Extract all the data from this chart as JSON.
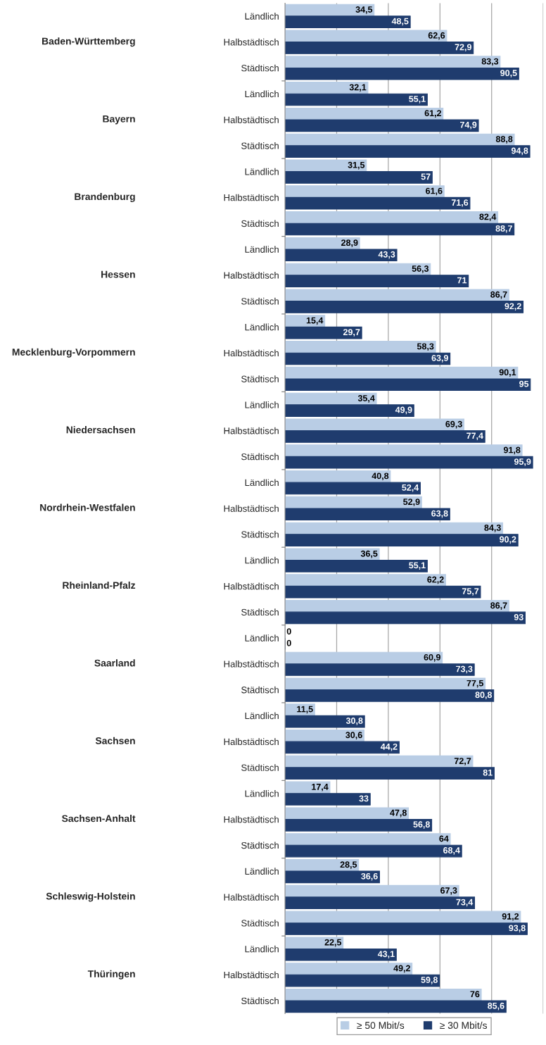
{
  "chart_data": {
    "type": "bar",
    "orientation": "horizontal",
    "categories": [
      "Ländlich",
      "Halbstädtisch",
      "Städtisch",
      "Ländlich",
      "Halbstädtisch",
      "Städtisch",
      "Ländlich",
      "Halbstädtisch",
      "Städtisch",
      "Ländlich",
      "Halbstädtisch",
      "Städtisch",
      "Ländlich",
      "Halbstädtisch",
      "Städtisch",
      "Ländlich",
      "Halbstädtisch",
      "Städtisch",
      "Ländlich",
      "Halbstädtisch",
      "Städtisch",
      "Ländlich",
      "Halbstädtisch",
      "Städtisch",
      "Ländlich",
      "Halbstädtisch",
      "Städtisch",
      "Ländlich",
      "Halbstädtisch",
      "Städtisch",
      "Ländlich",
      "Halbstädtisch",
      "Städtisch",
      "Ländlich",
      "Halbstädtisch",
      "Städtisch",
      "Ländlich",
      "Halbstädtisch",
      "Städtisch"
    ],
    "annotations": [
      "Baden-Württemberg",
      "Bayern",
      "Brandenburg",
      "Hessen",
      "Mecklenburg-Vorpommern",
      "Niedersachsen",
      "Nordrhein-Westfalen",
      "Rheinland-Pfalz",
      "Saarland",
      "Sachsen",
      "Sachsen-Anhalt",
      "Schleswig-Holstein",
      "Thüringen"
    ],
    "series": [
      {
        "name": "≥ 50 Mbit/s",
        "color": "#b9cde5",
        "values": [
          34.5,
          62.6,
          83.3,
          32.1,
          61.2,
          88.8,
          31.5,
          61.6,
          82.4,
          28.9,
          56.3,
          86.7,
          15.4,
          58.3,
          90.1,
          35.4,
          69.3,
          91.8,
          40.8,
          52.9,
          84.3,
          36.5,
          62.2,
          86.7,
          0,
          60.9,
          77.5,
          11.5,
          30.6,
          72.7,
          17.4,
          47.8,
          64,
          28.5,
          67.3,
          91.2,
          22.5,
          49.2,
          76
        ],
        "value_labels": [
          "34,5",
          "62,6",
          "83,3",
          "32,1",
          "61,2",
          "88,8",
          "31,5",
          "61,6",
          "82,4",
          "28,9",
          "56,3",
          "86,7",
          "15,4",
          "58,3",
          "90,1",
          "35,4",
          "69,3",
          "91,8",
          "40,8",
          "52,9",
          "84,3",
          "36,5",
          "62,2",
          "86,7",
          "0",
          "60,9",
          "77,5",
          "11,5",
          "30,6",
          "72,7",
          "17,4",
          "47,8",
          "64",
          "28,5",
          "67,3",
          "91,2",
          "22,5",
          "49,2",
          "76"
        ]
      },
      {
        "name": "≥ 30 Mbit/s",
        "color": "#1f3c6e",
        "values": [
          48.5,
          72.9,
          90.5,
          55.1,
          74.9,
          94.8,
          57,
          71.6,
          88.7,
          43.3,
          71,
          92.2,
          29.7,
          63.9,
          95,
          49.9,
          77.4,
          95.9,
          52.4,
          63.8,
          90.2,
          55.1,
          75.7,
          93,
          0,
          73.3,
          80.8,
          30.8,
          44.2,
          81,
          33,
          56.8,
          68.4,
          36.6,
          73.4,
          93.8,
          43.1,
          59.8,
          85.6
        ],
        "value_labels": [
          "48,5",
          "72,9",
          "90,5",
          "55,1",
          "74,9",
          "94,8",
          "57",
          "71,6",
          "88,7",
          "43,3",
          "71",
          "92,2",
          "29,7",
          "63,9",
          "95",
          "49,9",
          "77,4",
          "95,9",
          "52,4",
          "63,8",
          "90,2",
          "55,1",
          "75,7",
          "93",
          "0",
          "73,3",
          "80,8",
          "30,8",
          "44,2",
          "81",
          "33",
          "56,8",
          "68,4",
          "36,6",
          "73,4",
          "93,8",
          "43,1",
          "59,8",
          "85,6"
        ]
      }
    ],
    "xlim": [
      0,
      100
    ],
    "xticks": [
      {
        "value": 0,
        "label": null
      },
      {
        "value": 20,
        "label": null
      },
      {
        "value": 40,
        "label": null
      },
      {
        "value": 60,
        "label": null
      },
      {
        "value": 80,
        "label": null
      },
      {
        "value": 100,
        "label": null
      }
    ],
    "grid": "x",
    "tick_labels": "y",
    "legend": "bottom"
  }
}
